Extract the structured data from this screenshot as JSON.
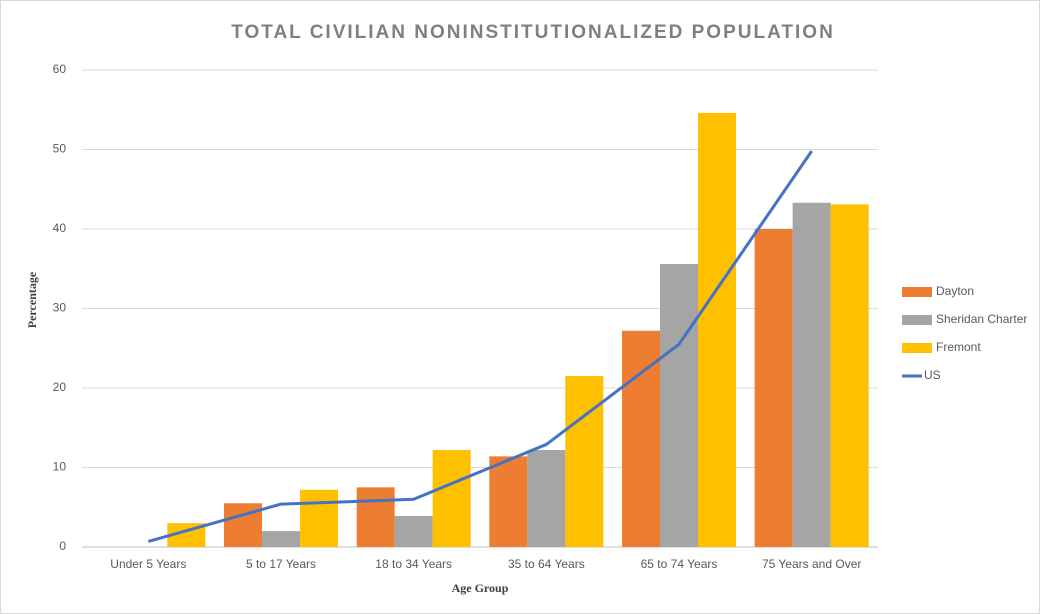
{
  "chart_data": {
    "type": "bar_line",
    "title": "TOTAL CIVILIAN NONINSTITUTIONALIZED POPULATION",
    "x_label": "Age Group",
    "y_label": "Percentage",
    "categories": [
      "Under 5 Years",
      "5 to 17 Years",
      "18 to 34 Years",
      "35 to 64 Years",
      "65 to 74 Years",
      "75 Years and Over"
    ],
    "series": [
      {
        "name": "Dayton",
        "type": "bar",
        "color": "#ed7d31",
        "values": [
          0,
          5.5,
          7.5,
          11.4,
          27.2,
          40.0
        ]
      },
      {
        "name": "Sheridan Charter",
        "type": "bar",
        "color": "#a5a5a5",
        "values": [
          0,
          2.0,
          3.9,
          12.2,
          35.6,
          43.3
        ]
      },
      {
        "name": "Fremont",
        "type": "bar",
        "color": "#ffc000",
        "values": [
          3.0,
          7.2,
          12.2,
          21.5,
          54.6,
          43.1
        ]
      },
      {
        "name": "US",
        "type": "line",
        "color": "#4472c4",
        "values": [
          0.7,
          5.4,
          6.0,
          12.9,
          25.5,
          49.8
        ]
      }
    ],
    "ylim": [
      0,
      60
    ],
    "yticks": [
      0,
      10,
      20,
      30,
      40,
      50,
      60
    ],
    "grid": true,
    "legend": "right"
  }
}
